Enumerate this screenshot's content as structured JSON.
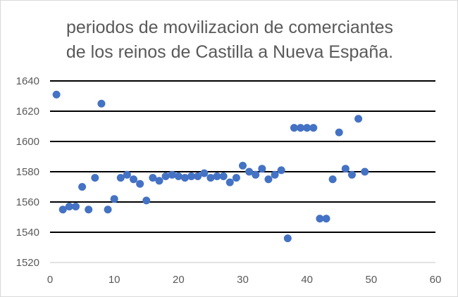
{
  "chart_data": {
    "type": "scatter",
    "title": [
      "periodos de movilizacion de comerciantes",
      "de los reinos de Castilla a Nueva España."
    ],
    "xlabel": "",
    "ylabel": "",
    "xlim": [
      0,
      60
    ],
    "ylim": [
      1520,
      1640
    ],
    "xticks": [
      0,
      10,
      20,
      30,
      40,
      50,
      60
    ],
    "yticks": [
      1520,
      1540,
      1560,
      1580,
      1600,
      1620,
      1640
    ],
    "grid": true,
    "legend": "none",
    "color": "#4472C4",
    "x": [
      1,
      2,
      3,
      4,
      5,
      6,
      7,
      8,
      9,
      10,
      11,
      12,
      13,
      14,
      15,
      16,
      17,
      18,
      19,
      20,
      21,
      22,
      23,
      24,
      25,
      26,
      27,
      28,
      29,
      30,
      31,
      32,
      33,
      34,
      35,
      36,
      37,
      38,
      39,
      40,
      41,
      42,
      43,
      44,
      45,
      46,
      47,
      48,
      49
    ],
    "y": [
      1631,
      1555,
      1557,
      1557,
      1570,
      1555,
      1576,
      1625,
      1555,
      1562,
      1576,
      1578,
      1575,
      1572,
      1561,
      1576,
      1574,
      1577,
      1578,
      1577,
      1576,
      1577,
      1577,
      1579,
      1576,
      1577,
      1577,
      1573,
      1576,
      1584,
      1580,
      1578,
      1582,
      1575,
      1578,
      1581,
      1536,
      1609,
      1609,
      1609,
      1609,
      1549,
      1549,
      1575,
      1606,
      1582,
      1578,
      1615,
      1580
    ]
  }
}
